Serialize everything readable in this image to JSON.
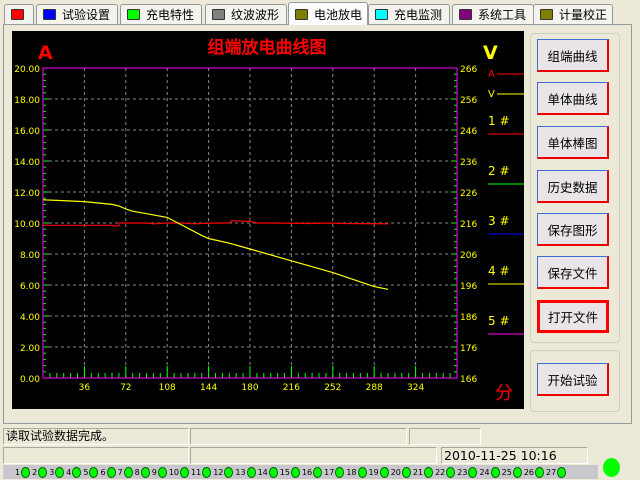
{
  "tabs": [
    {
      "label": "",
      "color": "#ff0000"
    },
    {
      "label": "试验设置",
      "color": "#0000ff"
    },
    {
      "label": "充电特性",
      "color": "#00ff00"
    },
    {
      "label": "纹波波形",
      "color": "#808080"
    },
    {
      "label": "电池放电",
      "color": "#808000",
      "active": true
    },
    {
      "label": "充电监测",
      "color": "#00ffff"
    },
    {
      "label": "系统工具",
      "color": "#800080"
    },
    {
      "label": "计量校正",
      "color": "#808000"
    }
  ],
  "buttons": [
    "组端曲线",
    "单体曲线",
    "单体棒图",
    "历史数据",
    "保存图形",
    "保存文件",
    "打开文件"
  ],
  "selected_button": "打开文件",
  "start_button": "开始试验",
  "status": {
    "message": "读取试验数据完成。",
    "datetime": "2010-11-25 10:16"
  },
  "leds": [
    "1",
    "2",
    "3",
    "4",
    "5",
    "6",
    "7",
    "8",
    "9",
    "10",
    "11",
    "12",
    "13",
    "14",
    "15",
    "16",
    "17",
    "18",
    "19",
    "20",
    "21",
    "22",
    "23",
    "24",
    "25",
    "26",
    "27"
  ],
  "chart_data": {
    "type": "line",
    "title": "组端放电曲线图",
    "ylabel": "A",
    "y2label": "V",
    "xlabel": "分",
    "xlim": [
      0,
      360
    ],
    "ylim": [
      0,
      20
    ],
    "y2lim": [
      166,
      266
    ],
    "xticks": [
      "36",
      "72",
      "108",
      "144",
      "180",
      "216",
      "252",
      "288",
      "324"
    ],
    "yticks": [
      "0.00",
      "2.00",
      "4.00",
      "6.00",
      "8.00",
      "10.00",
      "12.00",
      "14.00",
      "16.00",
      "18.00",
      "20.00"
    ],
    "y2ticks": [
      "166",
      "176",
      "186",
      "196",
      "206",
      "216",
      "226",
      "236",
      "246",
      "256",
      "266"
    ],
    "grid": true,
    "legend": [
      {
        "name": "A",
        "color": "#ff0000"
      },
      {
        "name": "V",
        "color": "#ffff00"
      },
      {
        "name": "1 #",
        "color": "#ff0000"
      },
      {
        "name": "2 #",
        "color": "#00ff00"
      },
      {
        "name": "3 #",
        "color": "#0000ff"
      },
      {
        "name": "4 #",
        "color": "#ffff00"
      },
      {
        "name": "5 #",
        "color": "#ff00ff"
      }
    ],
    "series": [
      {
        "name": "A",
        "axis": "left",
        "color": "#ff0000",
        "x": [
          0,
          60,
          60,
          66,
          66,
          72,
          90,
          96,
          108,
          120,
          132,
          150,
          162,
          164,
          180,
          186,
          200,
          230,
          250,
          260,
          300
        ],
        "y": [
          9.85,
          9.85,
          9.82,
          9.82,
          10.0,
          10.0,
          10.0,
          9.95,
          10.0,
          10.0,
          9.95,
          10.0,
          10.0,
          10.15,
          10.1,
          10.0,
          10.0,
          9.97,
          10.0,
          9.97,
          9.95
        ]
      },
      {
        "name": "V",
        "axis": "right",
        "color": "#ffff00",
        "x": [
          0,
          12,
          36,
          60,
          66,
          72,
          78,
          108,
          120,
          138,
          144,
          162,
          180,
          216,
          252,
          288,
          300
        ],
        "y": [
          223.5,
          223.3,
          222.9,
          222,
          221.5,
          220.5,
          219.8,
          217.8,
          215.5,
          212,
          211,
          209.5,
          207.6,
          203.8,
          200,
          195.5,
          194.6
        ]
      }
    ]
  }
}
